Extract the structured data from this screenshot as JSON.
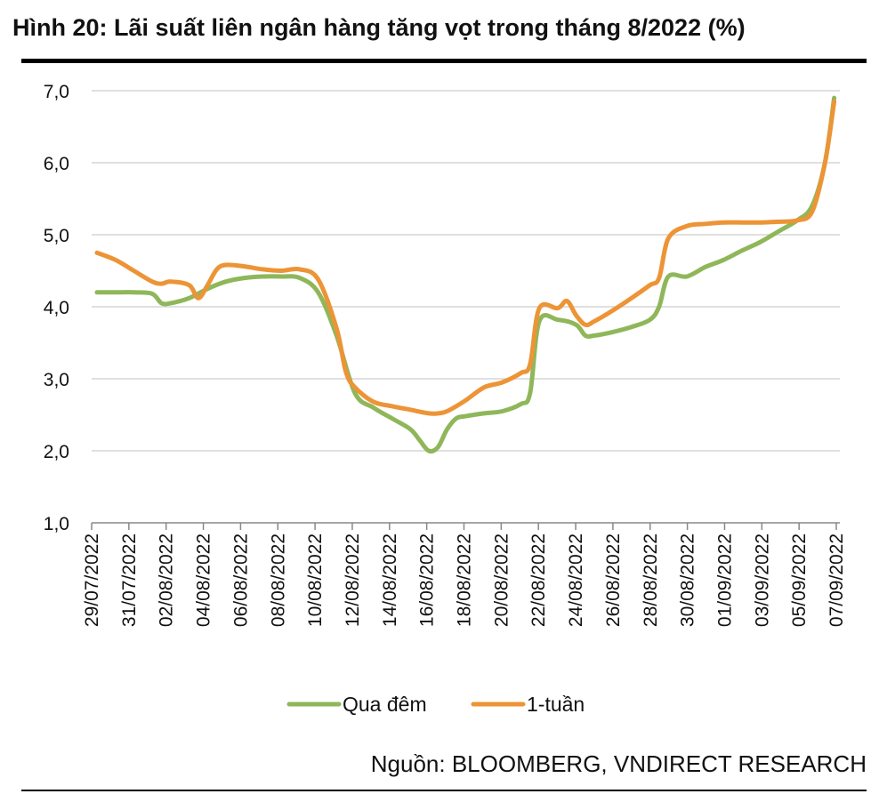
{
  "header": {
    "title": "Hình 20: Lãi suất liên ngân hàng tăng vọt trong tháng 8/2022  (%)"
  },
  "footer": {
    "source": "Nguồn: BLOOMBERG, VNDIRECT RESEARCH"
  },
  "chart_data": {
    "type": "line",
    "title": "Hình 20: Lãi suất liên ngân hàng tăng vọt trong tháng 8/2022  (%)",
    "xlabel": "",
    "ylabel": "",
    "ylim": [
      1.0,
      7.0
    ],
    "yticks": [
      "1,0",
      "2,0",
      "3,0",
      "4,0",
      "5,0",
      "6,0",
      "7,0"
    ],
    "xticks": [
      "29/07/2022",
      "31/07/2022",
      "02/08/2022",
      "04/08/2022",
      "06/08/2022",
      "08/08/2022",
      "10/08/2022",
      "12/08/2022",
      "14/08/2022",
      "16/08/2022",
      "18/08/2022",
      "20/08/2022",
      "22/08/2022",
      "24/08/2022",
      "26/08/2022",
      "28/08/2022",
      "30/08/2022",
      "01/09/2022",
      "03/09/2022",
      "05/09/2022",
      "07/09/2022"
    ],
    "grid": true,
    "legend_position": "bottom",
    "series": [
      {
        "name": "Qua đêm",
        "color": "#8fb75a",
        "points": [
          [
            0,
            4.2
          ],
          [
            1,
            4.2
          ],
          [
            2,
            4.2
          ],
          [
            3,
            4.18
          ],
          [
            3.5,
            4.05
          ],
          [
            4,
            4.05
          ],
          [
            5,
            4.12
          ],
          [
            6,
            4.25
          ],
          [
            7,
            4.35
          ],
          [
            8,
            4.4
          ],
          [
            9,
            4.42
          ],
          [
            10,
            4.42
          ],
          [
            11,
            4.4
          ],
          [
            12,
            4.2
          ],
          [
            13,
            3.6
          ],
          [
            14,
            2.8
          ],
          [
            15,
            2.6
          ],
          [
            16,
            2.45
          ],
          [
            17,
            2.3
          ],
          [
            17.5,
            2.15
          ],
          [
            18,
            2.0
          ],
          [
            18.5,
            2.05
          ],
          [
            19,
            2.3
          ],
          [
            19.5,
            2.45
          ],
          [
            20,
            2.48
          ],
          [
            21,
            2.52
          ],
          [
            22,
            2.55
          ],
          [
            23,
            2.65
          ],
          [
            23.5,
            2.8
          ],
          [
            24,
            3.8
          ],
          [
            25,
            3.82
          ],
          [
            26,
            3.75
          ],
          [
            26.5,
            3.6
          ],
          [
            27,
            3.6
          ],
          [
            28,
            3.65
          ],
          [
            29,
            3.72
          ],
          [
            30,
            3.82
          ],
          [
            30.5,
            4.0
          ],
          [
            31,
            4.42
          ],
          [
            32,
            4.42
          ],
          [
            33,
            4.55
          ],
          [
            34,
            4.65
          ],
          [
            35,
            4.78
          ],
          [
            36,
            4.9
          ],
          [
            37,
            5.05
          ],
          [
            38,
            5.2
          ],
          [
            38.8,
            5.4
          ],
          [
            39.5,
            6.0
          ],
          [
            40,
            6.9
          ]
        ]
      },
      {
        "name": "1-tuần",
        "color": "#ec9436",
        "points": [
          [
            0,
            4.75
          ],
          [
            1,
            4.65
          ],
          [
            2,
            4.5
          ],
          [
            3,
            4.35
          ],
          [
            3.5,
            4.32
          ],
          [
            4,
            4.35
          ],
          [
            5,
            4.3
          ],
          [
            5.5,
            4.12
          ],
          [
            6,
            4.3
          ],
          [
            6.5,
            4.52
          ],
          [
            7,
            4.58
          ],
          [
            8,
            4.56
          ],
          [
            9,
            4.52
          ],
          [
            10,
            4.5
          ],
          [
            11,
            4.52
          ],
          [
            12,
            4.38
          ],
          [
            13,
            3.7
          ],
          [
            13.5,
            3.1
          ],
          [
            14,
            2.88
          ],
          [
            15,
            2.68
          ],
          [
            16,
            2.62
          ],
          [
            17,
            2.57
          ],
          [
            18,
            2.52
          ],
          [
            18.5,
            2.52
          ],
          [
            19,
            2.55
          ],
          [
            20,
            2.7
          ],
          [
            21,
            2.88
          ],
          [
            22,
            2.95
          ],
          [
            23,
            3.08
          ],
          [
            23.5,
            3.2
          ],
          [
            24,
            3.98
          ],
          [
            25,
            3.98
          ],
          [
            25.5,
            4.08
          ],
          [
            26,
            3.88
          ],
          [
            26.5,
            3.75
          ],
          [
            27,
            3.8
          ],
          [
            28,
            3.95
          ],
          [
            29,
            4.12
          ],
          [
            30,
            4.3
          ],
          [
            30.5,
            4.4
          ],
          [
            31,
            4.95
          ],
          [
            32,
            5.12
          ],
          [
            33,
            5.15
          ],
          [
            34,
            5.17
          ],
          [
            35,
            5.17
          ],
          [
            36,
            5.17
          ],
          [
            37,
            5.18
          ],
          [
            38,
            5.2
          ],
          [
            38.8,
            5.32
          ],
          [
            39.5,
            6.0
          ],
          [
            40,
            6.85
          ]
        ]
      }
    ]
  }
}
